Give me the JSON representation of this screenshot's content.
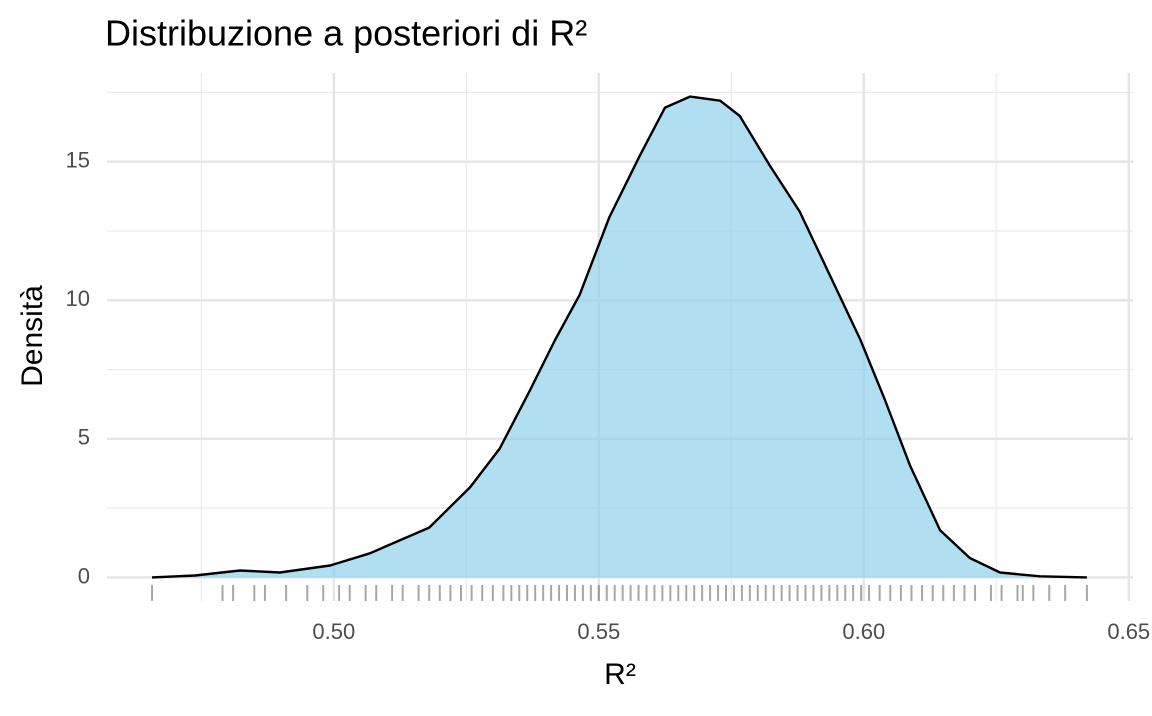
{
  "chart_data": {
    "type": "density",
    "title": "Distribuzione a posteriori di R²",
    "x_label": "R²",
    "y_label": "Densità",
    "x": [
      0.4657,
      0.4738,
      0.4823,
      0.4898,
      0.4993,
      0.5068,
      0.518,
      0.5257,
      0.5313,
      0.537,
      0.5417,
      0.5464,
      0.552,
      0.5577,
      0.5625,
      0.5672,
      0.5729,
      0.5766,
      0.5823,
      0.5879,
      0.5936,
      0.5993,
      0.604,
      0.6087,
      0.6144,
      0.62,
      0.6257,
      0.6332,
      0.6421
    ],
    "values": [
      0,
      0.07,
      0.25,
      0.18,
      0.43,
      0.87,
      1.8,
      3.25,
      4.65,
      6.75,
      8.55,
      10.2,
      13.0,
      15.2,
      16.95,
      17.35,
      17.2,
      16.65,
      14.85,
      13.2,
      10.9,
      8.6,
      6.4,
      4.05,
      1.7,
      0.7,
      0.18,
      0.04,
      0
    ],
    "fill_color": "#87ceeb",
    "fill_opacity": 0.65,
    "line_color": "#000000",
    "rug": [
      0.4657,
      0.479,
      0.481,
      0.485,
      0.487,
      0.491,
      0.495,
      0.498,
      0.501,
      0.503,
      0.506,
      0.508,
      0.511,
      0.513,
      0.516,
      0.518,
      0.52,
      0.522,
      0.524,
      0.526,
      0.528,
      0.53,
      0.532,
      0.5335,
      0.535,
      0.5365,
      0.538,
      0.5395,
      0.541,
      0.5425,
      0.544,
      0.5455,
      0.547,
      0.5485,
      0.55,
      0.5515,
      0.553,
      0.5545,
      0.556,
      0.5575,
      0.559,
      0.5605,
      0.562,
      0.5635,
      0.565,
      0.5665,
      0.568,
      0.5695,
      0.571,
      0.5725,
      0.574,
      0.5755,
      0.577,
      0.5785,
      0.58,
      0.5815,
      0.583,
      0.5845,
      0.586,
      0.5875,
      0.589,
      0.5905,
      0.592,
      0.5935,
      0.595,
      0.5965,
      0.598,
      0.5995,
      0.601,
      0.603,
      0.605,
      0.607,
      0.609,
      0.611,
      0.613,
      0.615,
      0.617,
      0.619,
      0.621,
      0.624,
      0.626,
      0.629,
      0.63,
      0.632,
      0.635,
      0.638,
      0.6421
    ],
    "xlim": [
      0.4572,
      0.6508
    ],
    "ylim": [
      -0.85,
      18.2
    ],
    "xticks": [
      {
        "value": 0.5,
        "label": "0.50"
      },
      {
        "value": 0.55,
        "label": "0.55"
      },
      {
        "value": 0.6,
        "label": "0.60"
      },
      {
        "value": 0.65,
        "label": "0.65"
      }
    ],
    "x_minor_ticks": [
      0.475,
      0.525,
      0.575,
      0.625
    ],
    "yticks": [
      0,
      5,
      10,
      15
    ],
    "y_minor_ticks": [
      2.5,
      7.5,
      12.5,
      17.5
    ],
    "grid": true
  }
}
